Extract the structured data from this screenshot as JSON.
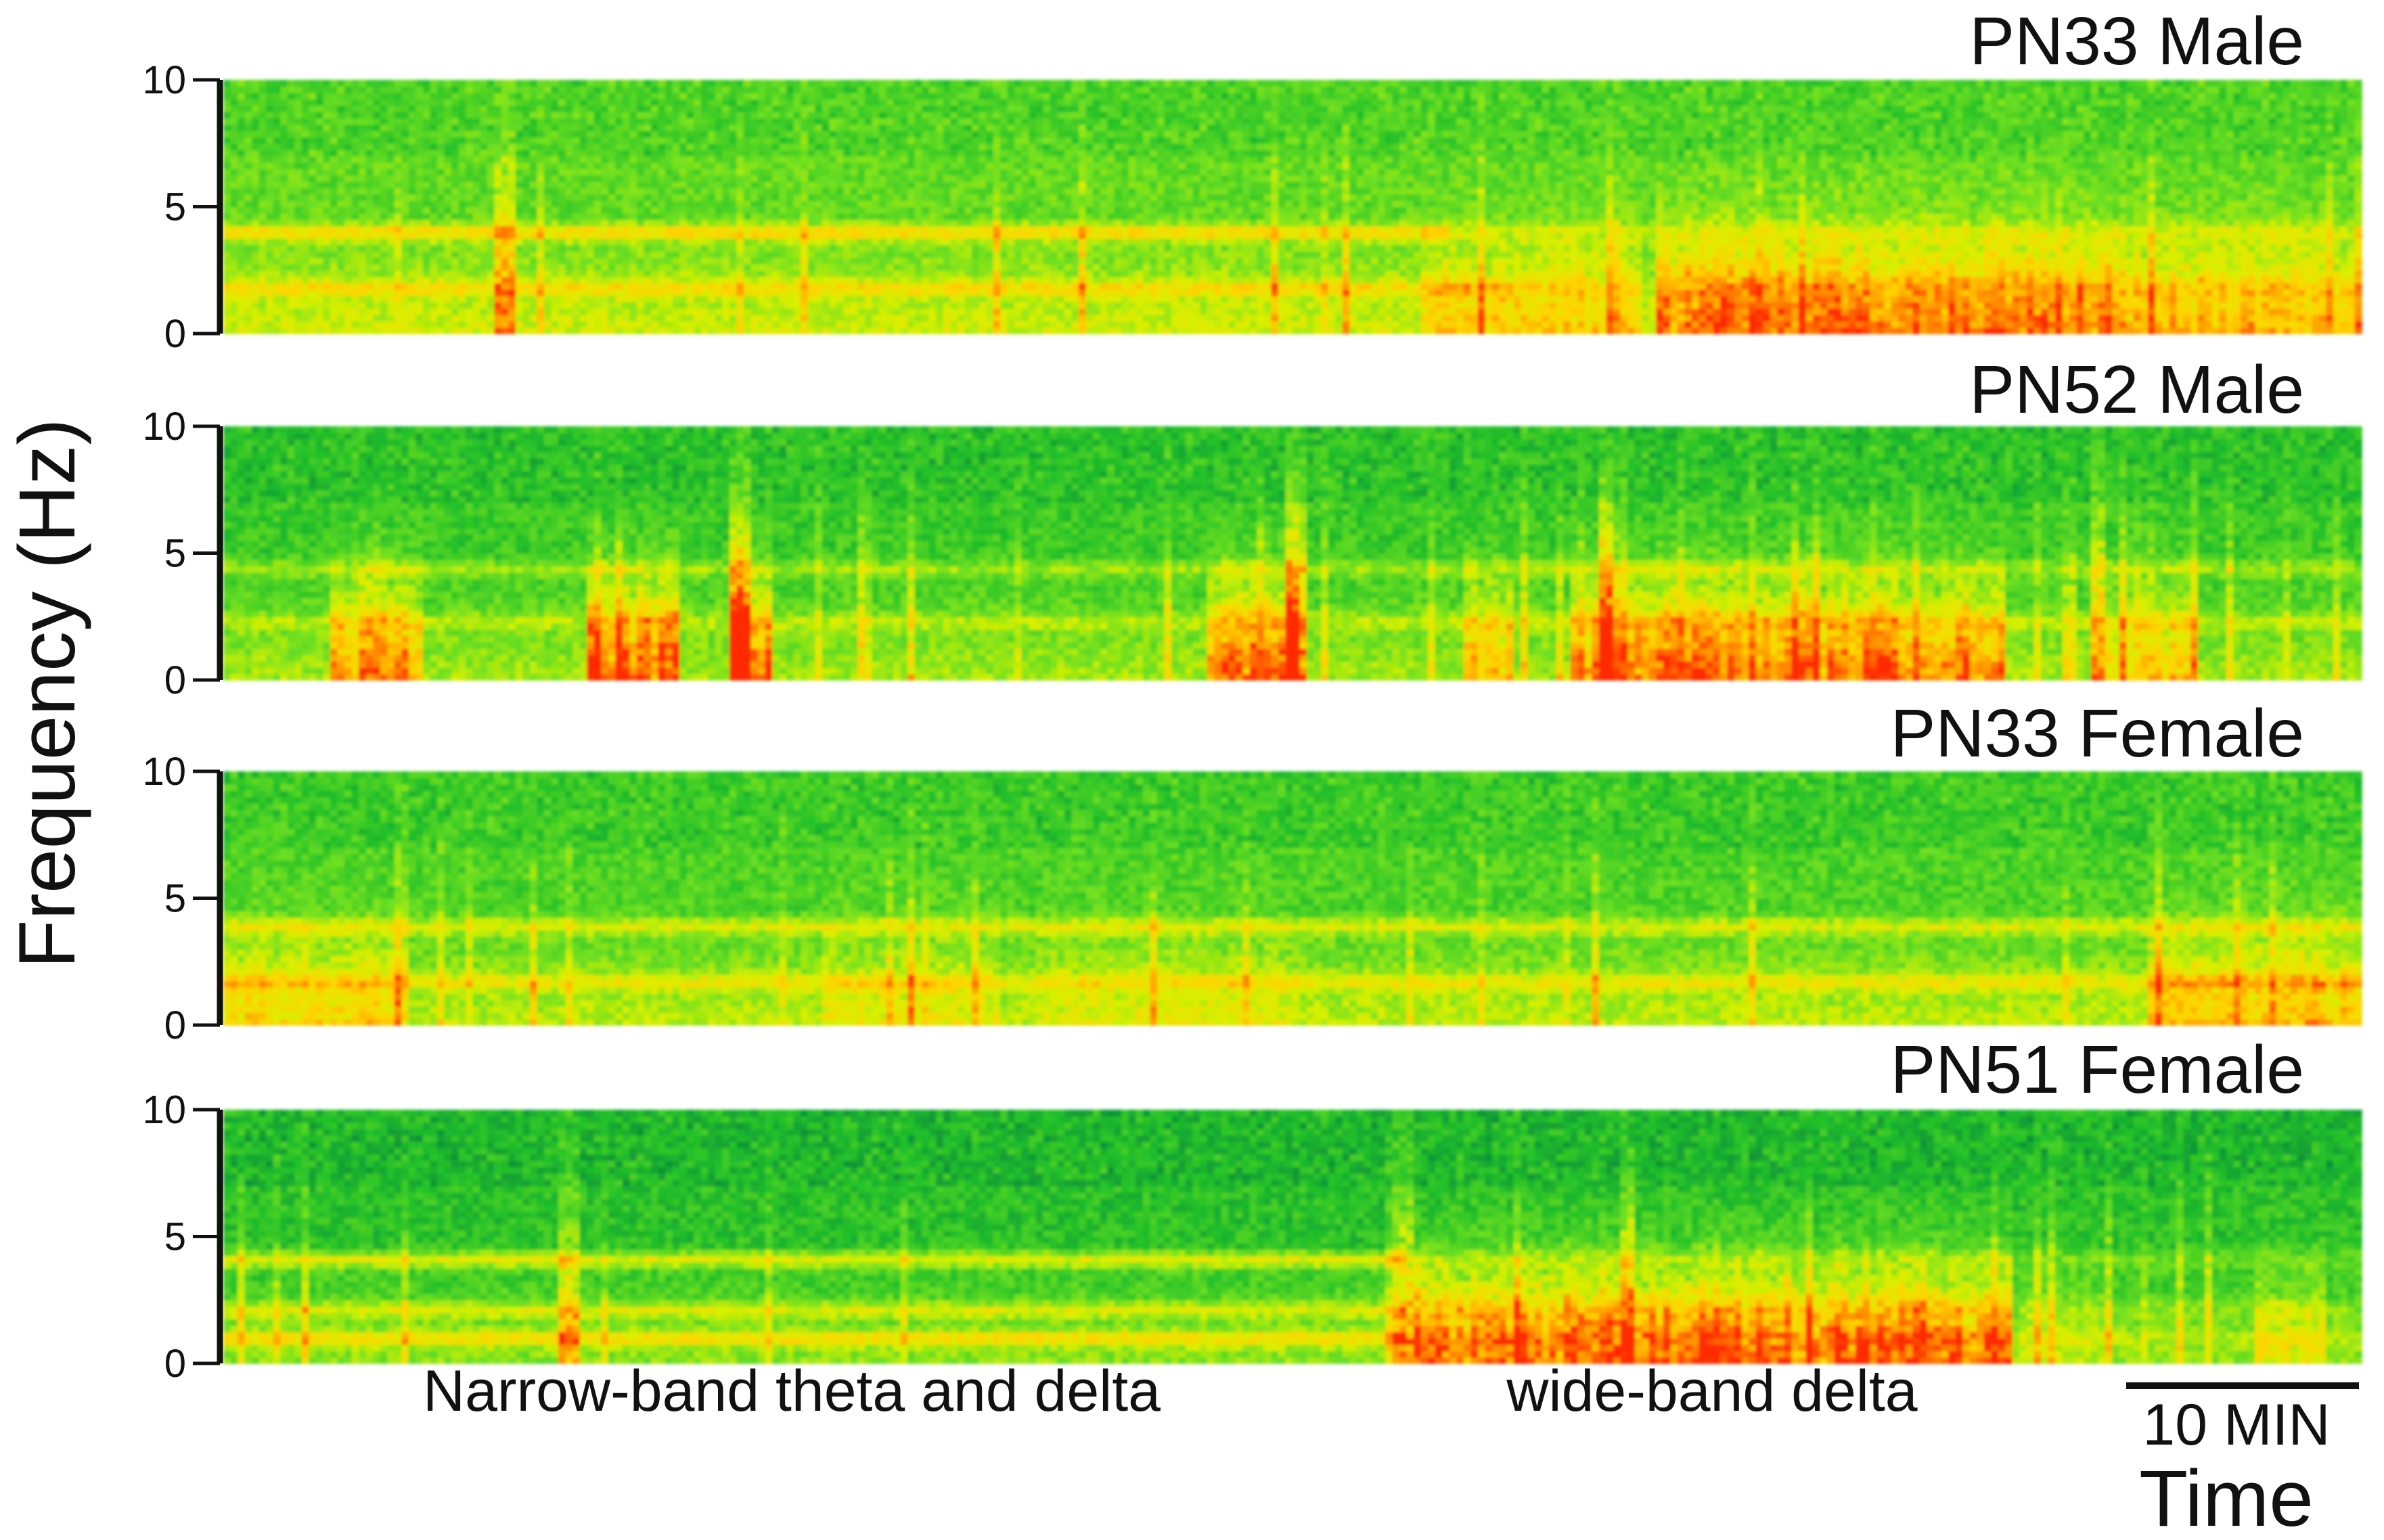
{
  "chart_data": {
    "type": "heatmap",
    "ylabel": "Frequency (Hz)",
    "xlabel": "Time",
    "ylim": [
      0,
      10
    ],
    "yticks": [
      "0",
      "5",
      "10"
    ],
    "colormap": [
      "#0a8a3a",
      "#22c02a",
      "#6fe020",
      "#d8f000",
      "#ffd400",
      "#ff8c00",
      "#ff2a00"
    ],
    "annotations": [
      {
        "text": "Narrow-band theta and delta"
      },
      {
        "text": "wide-band delta"
      }
    ],
    "scale_bar": {
      "label": "10 MIN",
      "minutes": 10
    },
    "panels": [
      {
        "title": "PN33 Male"
      },
      {
        "title": "PN52 Male"
      },
      {
        "title": "PN33 Female"
      },
      {
        "title": "PN51 Female"
      }
    ]
  }
}
